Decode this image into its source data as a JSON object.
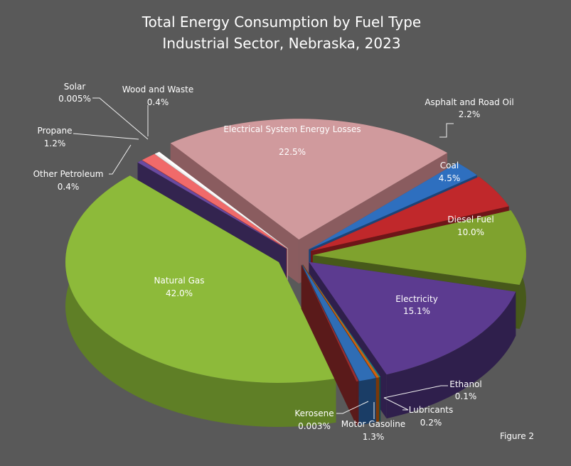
{
  "chart_data": {
    "type": "pie",
    "style": "3d-exploded",
    "title": "Total Energy Consumption by Fuel Type",
    "subtitle": "Industrial Sector, Nebraska, 2023",
    "note": "Figure 2",
    "slices": [
      {
        "label": "Electrical System Energy Losses",
        "value": 22.5,
        "display": "22.5%",
        "color": "#d09a9d",
        "side": "#8a5c5f"
      },
      {
        "label": "Asphalt and Road Oil",
        "value": 2.2,
        "display": "2.2%",
        "color": "#2e6fbf",
        "side": "#1c4478"
      },
      {
        "label": "Coal",
        "value": 4.5,
        "display": "4.5%",
        "color": "#c0282b",
        "side": "#6e1618"
      },
      {
        "label": "Diesel Fuel",
        "value": 10.0,
        "display": "10.0%",
        "color": "#7fa22e",
        "side": "#47591a"
      },
      {
        "label": "Electricity",
        "value": 15.1,
        "display": "15.1%",
        "color": "#5c3b90",
        "side": "#2f1f4c"
      },
      {
        "label": "Ethanol",
        "value": 0.1,
        "display": "0.1%",
        "color": "#1a8080",
        "side": "#0f4a4a"
      },
      {
        "label": "Lubricants",
        "value": 0.2,
        "display": "0.2%",
        "color": "#d0600f",
        "side": "#7a3808"
      },
      {
        "label": "Motor Gasoline",
        "value": 1.3,
        "display": "1.3%",
        "color": "#2f6db5",
        "side": "#1a3d66"
      },
      {
        "label": "Kerosene",
        "value": 0.003,
        "display": "0.003%",
        "color": "#9a2e2e",
        "side": "#5a1a1a"
      },
      {
        "label": "Natural Gas",
        "value": 42.0,
        "display": "42.0%",
        "color": "#8dba3a",
        "side": "#5f7f26"
      },
      {
        "label": "Other Petroleum",
        "value": 0.4,
        "display": "0.4%",
        "color": "#6a4aa0",
        "side": "#33244f"
      },
      {
        "label": "Propane",
        "value": 1.2,
        "display": "1.2%",
        "color": "#f06a6a",
        "side": "#a03c3c"
      },
      {
        "label": "Solar",
        "value": 0.005,
        "display": "0.005%",
        "color": "#f2f2f2",
        "side": "#bdbdbd"
      },
      {
        "label": "Wood and Waste",
        "value": 0.4,
        "display": "0.4%",
        "color": "#ffffff",
        "side": "#d0d0d0"
      }
    ],
    "start_angle_deg": -37
  }
}
